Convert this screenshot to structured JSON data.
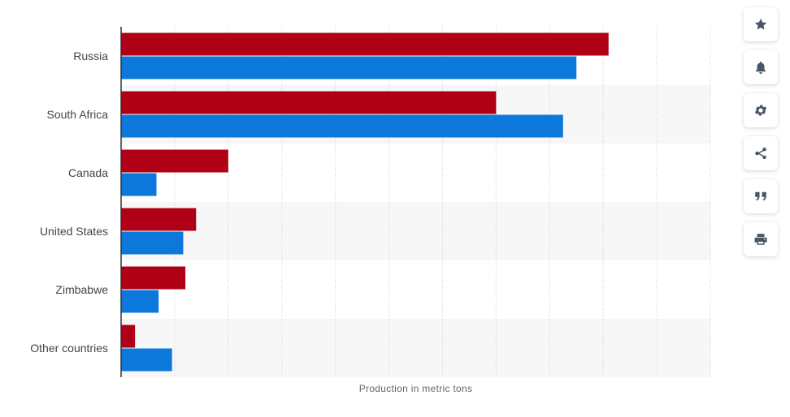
{
  "chart_data": {
    "type": "bar",
    "orientation": "horizontal",
    "categories": [
      "Russia",
      "South Africa",
      "Canada",
      "United States",
      "Zimbabwe",
      "Other countries"
    ],
    "series": [
      {
        "color": "#b00016",
        "values": [
          91000,
          70000,
          20000,
          14000,
          12000,
          2600
        ]
      },
      {
        "color": "#0c78dc",
        "values": [
          85000,
          82500,
          6600,
          11600,
          7000,
          9500
        ]
      }
    ],
    "xlabel": "Production in metric tons",
    "xlim": [
      0,
      110000
    ],
    "grid": true,
    "legend": "none"
  },
  "toolbar": {
    "buttons": [
      {
        "name": "favorite-button",
        "icon": "star-icon"
      },
      {
        "name": "notification-button",
        "icon": "bell-icon"
      },
      {
        "name": "settings-button",
        "icon": "gear-icon"
      },
      {
        "name": "share-button",
        "icon": "share-icon"
      },
      {
        "name": "cite-button",
        "icon": "quote-icon"
      },
      {
        "name": "print-button",
        "icon": "printer-icon"
      }
    ]
  }
}
